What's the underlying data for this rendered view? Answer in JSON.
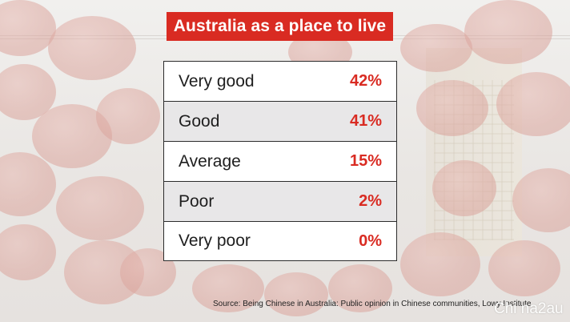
{
  "title": "Australia as a place to live",
  "source": "Source: Being Chinese in Australia: Public opinion in Chinese communities, Lowy Institute",
  "watermark": "Chi na2au",
  "colors": {
    "accent": "#d92b22",
    "row_shade": "#e8e7e8"
  },
  "chart_data": {
    "type": "table",
    "title": "Australia as a place to live",
    "rows": [
      {
        "label": "Very good",
        "value": 42,
        "display": "42%"
      },
      {
        "label": "Good",
        "value": 41,
        "display": "41%"
      },
      {
        "label": "Average",
        "value": 15,
        "display": "15%"
      },
      {
        "label": "Poor",
        "value": 2,
        "display": "2%"
      },
      {
        "label": "Very poor",
        "value": 0,
        "display": "0%"
      }
    ]
  }
}
